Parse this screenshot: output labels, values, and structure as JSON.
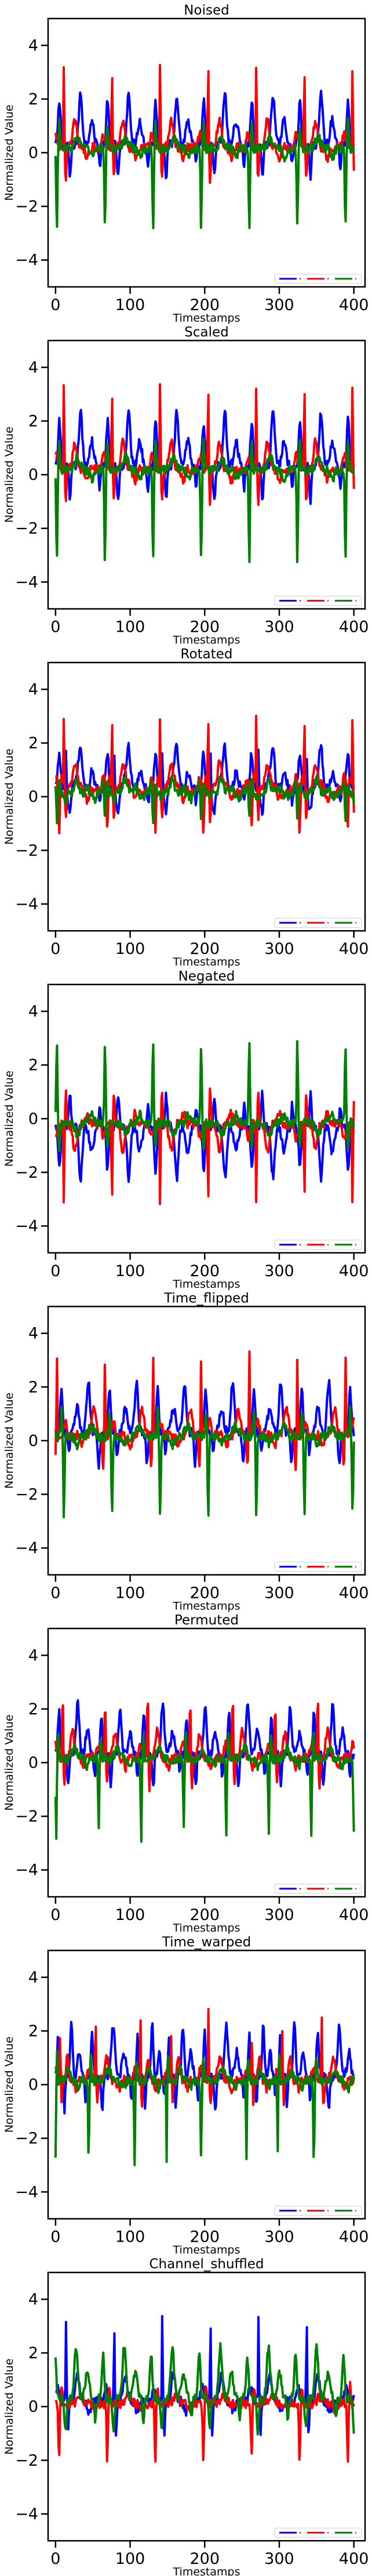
{
  "chart_data": [
    {
      "type": "line",
      "title": "Noised",
      "xlabel": "Timestamps",
      "ylabel": "Normalized Value",
      "xlim": [
        -10,
        415
      ],
      "ylim": [
        -5,
        5
      ],
      "xticks": [
        0,
        100,
        200,
        300,
        400
      ],
      "yticks": [
        -4,
        -2,
        0,
        2,
        4
      ],
      "legend": "lower-right",
      "period": 64.5,
      "series": [
        {
          "color": "#0000ff",
          "amp": 1.0
        },
        {
          "color": "#ff0000",
          "amp": 1.0
        },
        {
          "color": "#008000",
          "amp": 1.0
        }
      ]
    },
    {
      "type": "line",
      "title": "Scaled",
      "xlabel": "Timestamps",
      "ylabel": "Normalized Value",
      "xlim": [
        -10,
        415
      ],
      "ylim": [
        -5,
        5
      ],
      "xticks": [
        0,
        100,
        200,
        300,
        400
      ],
      "yticks": [
        -4,
        -2,
        0,
        2,
        4
      ],
      "legend": "lower-right",
      "period": 64.5,
      "series": [
        {
          "color": "#0000ff",
          "amp": 1.05
        },
        {
          "color": "#ff0000",
          "amp": 1.0
        },
        {
          "color": "#008000",
          "amp": 1.15
        }
      ]
    },
    {
      "type": "line",
      "title": "Rotated",
      "xlabel": "Timestamps",
      "ylabel": "Normalized Value",
      "xlim": [
        -10,
        415
      ],
      "ylim": [
        -5,
        5
      ],
      "xticks": [
        0,
        100,
        200,
        300,
        400
      ],
      "yticks": [
        -4,
        -2,
        0,
        2,
        4
      ],
      "legend": "lower-right",
      "period": 64.5,
      "series": [
        {
          "color": "#0000ff",
          "amp": 1.0
        },
        {
          "color": "#ff0000",
          "amp": 1.2
        },
        {
          "color": "#008000",
          "amp": 0.5
        }
      ]
    },
    {
      "type": "line",
      "title": "Negated",
      "xlabel": "Timestamps",
      "ylabel": "Normalized Value",
      "xlim": [
        -10,
        415
      ],
      "ylim": [
        -5,
        5
      ],
      "xticks": [
        0,
        100,
        200,
        300,
        400
      ],
      "yticks": [
        -4,
        -2,
        0,
        2,
        4
      ],
      "legend": "lower-right",
      "period": 64.5,
      "series": [
        {
          "color": "#0000ff",
          "amp": -1.0
        },
        {
          "color": "#ff0000",
          "amp": -1.0
        },
        {
          "color": "#008000",
          "amp": -1.0
        }
      ]
    },
    {
      "type": "line",
      "title": "Time_flipped",
      "xlabel": "Timestamps",
      "ylabel": "Normalized Value",
      "xlim": [
        -10,
        415
      ],
      "ylim": [
        -5,
        5
      ],
      "xticks": [
        0,
        100,
        200,
        300,
        400
      ],
      "yticks": [
        -4,
        -2,
        0,
        2,
        4
      ],
      "legend": "lower-right",
      "period": 64.5,
      "series": [
        {
          "color": "#0000ff",
          "amp": 1.0
        },
        {
          "color": "#ff0000",
          "amp": 1.0
        },
        {
          "color": "#008000",
          "amp": 1.0
        }
      ]
    },
    {
      "type": "line",
      "title": "Permuted",
      "xlabel": "Timestamps",
      "ylabel": "Normalized Value",
      "xlim": [
        -10,
        415
      ],
      "ylim": [
        -5,
        5
      ],
      "xticks": [
        0,
        100,
        200,
        300,
        400
      ],
      "yticks": [
        -4,
        -2,
        0,
        2,
        4
      ],
      "legend": "lower-right",
      "period": 57,
      "series": [
        {
          "color": "#0000ff",
          "amp": 1.0
        },
        {
          "color": "#ff0000",
          "amp": 1.0
        },
        {
          "color": "#008000",
          "amp": 1.0
        }
      ]
    },
    {
      "type": "line",
      "title": "Time_warped",
      "xlabel": "Timestamps",
      "ylabel": "Normalized Value",
      "xlim": [
        -10,
        415
      ],
      "ylim": [
        -5,
        5
      ],
      "xticks": [
        0,
        100,
        200,
        300,
        400
      ],
      "yticks": [
        -4,
        -2,
        0,
        2,
        4
      ],
      "legend": "lower-right",
      "period": 50,
      "series": [
        {
          "color": "#0000ff",
          "amp": 1.0
        },
        {
          "color": "#ff0000",
          "amp": 0.8
        },
        {
          "color": "#008000",
          "amp": 1.0
        }
      ]
    },
    {
      "type": "line",
      "title": "Channel_shuffled",
      "xlabel": "Timestamps",
      "ylabel": "Normalized Value",
      "xlim": [
        -10,
        415
      ],
      "ylim": [
        -5,
        5
      ],
      "xticks": [
        0,
        100,
        200,
        300,
        400
      ],
      "yticks": [
        -4,
        -2,
        0,
        2,
        4
      ],
      "legend": "lower-right",
      "period": 64.5,
      "series": [
        {
          "color": "#0000ff",
          "amp": 1.0
        },
        {
          "color": "#ff0000",
          "amp": 1.0
        },
        {
          "color": "#008000",
          "amp": 1.0
        }
      ]
    }
  ]
}
